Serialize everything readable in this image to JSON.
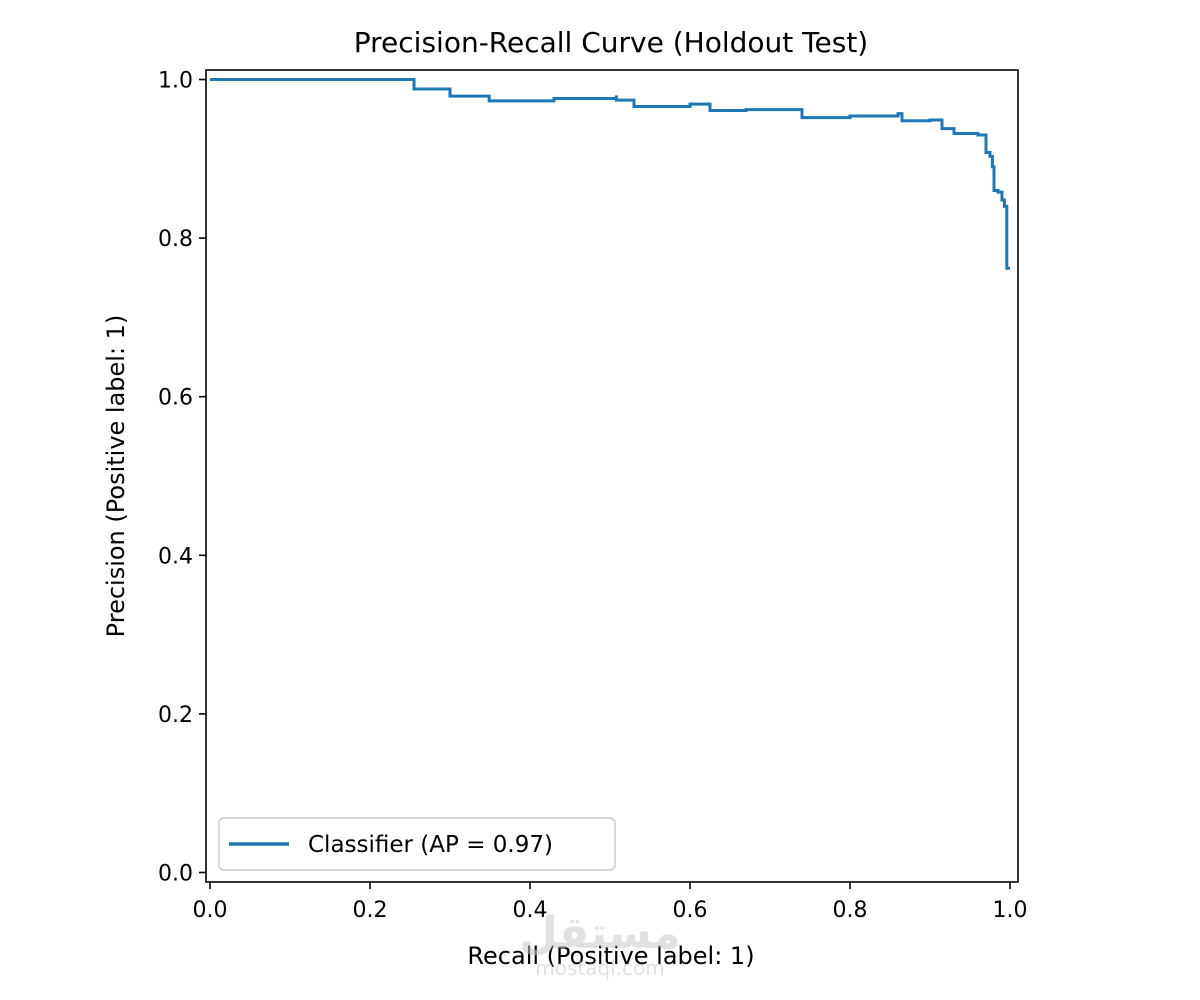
{
  "chart_data": {
    "type": "line",
    "title": "Precision-Recall Curve (Holdout Test)",
    "xlabel": "Recall (Positive label: 1)",
    "ylabel": "Precision (Positive label: 1)",
    "xlim": [
      -0.005,
      1.01
    ],
    "ylim": [
      -0.012,
      1.012
    ],
    "xticks": [
      0.0,
      0.2,
      0.4,
      0.6,
      0.8,
      1.0
    ],
    "xtick_labels": [
      "0.0",
      "0.2",
      "0.4",
      "0.6",
      "0.8",
      "1.0"
    ],
    "yticks": [
      0.0,
      0.2,
      0.4,
      0.6,
      0.8,
      1.0
    ],
    "ytick_labels": [
      "0.0",
      "0.2",
      "0.4",
      "0.6",
      "0.8",
      "1.0"
    ],
    "grid": false,
    "legend_position": "lower-left",
    "series": [
      {
        "name": "Classifier (AP = 0.97)",
        "color": "#1f77b4",
        "drawstyle": "steps",
        "points": [
          [
            0.0,
            1.0
          ],
          [
            0.255,
            1.0
          ],
          [
            0.255,
            0.988
          ],
          [
            0.3,
            0.988
          ],
          [
            0.3,
            0.979
          ],
          [
            0.343,
            0.979
          ],
          [
            0.349,
            0.973
          ],
          [
            0.43,
            0.976
          ],
          [
            0.508,
            0.98
          ],
          [
            0.508,
            0.974
          ],
          [
            0.53,
            0.972
          ],
          [
            0.53,
            0.966
          ],
          [
            0.6,
            0.969
          ],
          [
            0.625,
            0.969
          ],
          [
            0.625,
            0.961
          ],
          [
            0.67,
            0.962
          ],
          [
            0.74,
            0.962
          ],
          [
            0.74,
            0.952
          ],
          [
            0.8,
            0.954
          ],
          [
            0.86,
            0.957
          ],
          [
            0.865,
            0.957
          ],
          [
            0.865,
            0.948
          ],
          [
            0.9,
            0.949
          ],
          [
            0.915,
            0.949
          ],
          [
            0.915,
            0.938
          ],
          [
            0.93,
            0.932
          ],
          [
            0.96,
            0.93
          ],
          [
            0.97,
            0.926
          ],
          [
            0.97,
            0.908
          ],
          [
            0.975,
            0.903
          ],
          [
            0.978,
            0.89
          ],
          [
            0.98,
            0.877
          ],
          [
            0.98,
            0.86
          ],
          [
            0.985,
            0.858
          ],
          [
            0.99,
            0.848
          ],
          [
            0.993,
            0.84
          ],
          [
            0.996,
            0.838
          ],
          [
            0.996,
            0.762
          ],
          [
            1.0,
            0.762
          ]
        ]
      }
    ]
  },
  "watermark": {
    "arabic": "مستقل",
    "site": "mostaql.com"
  }
}
